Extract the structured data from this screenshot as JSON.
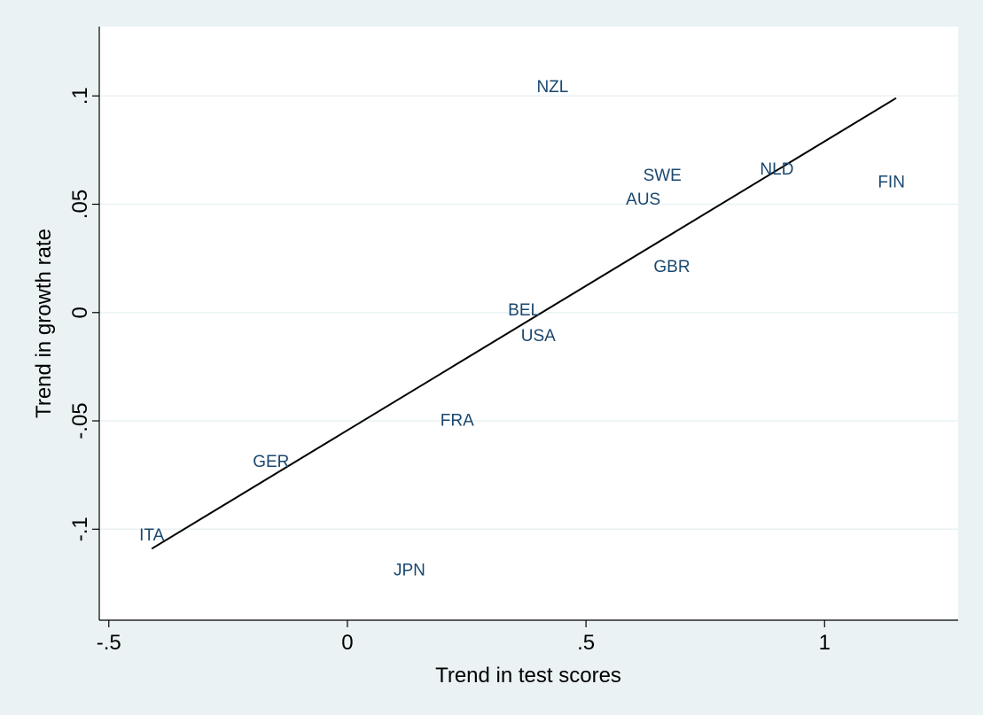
{
  "chart_data": {
    "type": "scatter",
    "title": "",
    "xlabel": "Trend in test scores",
    "ylabel": "Trend in growth rate",
    "xlim": [
      -0.52,
      1.28
    ],
    "ylim": [
      -0.142,
      0.132
    ],
    "xticks": [
      {
        "value": -0.5,
        "label": "-.5"
      },
      {
        "value": 0,
        "label": "0"
      },
      {
        "value": 0.5,
        "label": ".5"
      },
      {
        "value": 1,
        "label": "1"
      }
    ],
    "yticks": [
      {
        "value": -0.1,
        "label": "-.1"
      },
      {
        "value": -0.05,
        "label": "-.05"
      },
      {
        "value": 0,
        "label": "0"
      },
      {
        "value": 0.05,
        "label": ".05"
      },
      {
        "value": 0.1,
        "label": ".1"
      }
    ],
    "grid": true,
    "points": [
      {
        "label": "NZL",
        "x": 0.43,
        "y": 0.104
      },
      {
        "label": "SWE",
        "x": 0.66,
        "y": 0.063
      },
      {
        "label": "AUS",
        "x": 0.62,
        "y": 0.052
      },
      {
        "label": "NLD",
        "x": 0.9,
        "y": 0.066
      },
      {
        "label": "FIN",
        "x": 1.14,
        "y": 0.06
      },
      {
        "label": "GBR",
        "x": 0.68,
        "y": 0.021
      },
      {
        "label": "BEL",
        "x": 0.37,
        "y": 0.001
      },
      {
        "label": "USA",
        "x": 0.4,
        "y": -0.011
      },
      {
        "label": "FRA",
        "x": 0.23,
        "y": -0.05
      },
      {
        "label": "GER",
        "x": -0.16,
        "y": -0.069
      },
      {
        "label": "ITA",
        "x": -0.41,
        "y": -0.103
      },
      {
        "label": "JPN",
        "x": 0.13,
        "y": -0.119
      }
    ],
    "fit_line": {
      "x": [
        -0.41,
        1.15
      ],
      "y": [
        -0.109,
        0.099
      ]
    },
    "colors": {
      "background": "#eaf2f3",
      "plot_area": "#ffffff",
      "grid": "#eaf2f3",
      "point_label": "#1a476f",
      "fit_line": "#000000"
    }
  }
}
